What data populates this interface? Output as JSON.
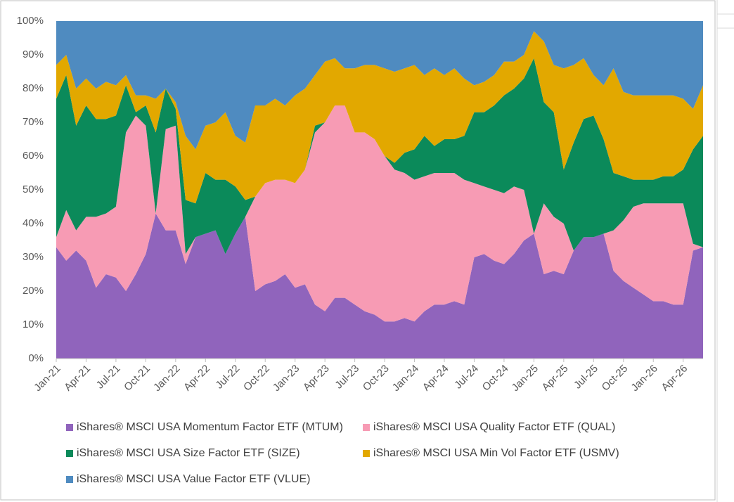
{
  "chart_data": {
    "type": "stacked_area",
    "categories": [
      "Jan-21",
      null,
      null,
      "Apr-21",
      null,
      null,
      "Jul-21",
      null,
      null,
      "Oct-21",
      null,
      null,
      "Jan-22",
      null,
      null,
      "Apr-22",
      null,
      null,
      "Jul-22",
      null,
      null,
      "Oct-22",
      null,
      null,
      "Jan-23",
      null,
      null,
      "Apr-23",
      null,
      null,
      "Jul-23",
      null,
      null,
      "Oct-23",
      null,
      null,
      "Jan-24",
      null,
      null,
      "Apr-24",
      null,
      null,
      "Jul-24",
      null,
      null,
      "Oct-24",
      null,
      null,
      "Jan-25",
      null,
      null,
      "Apr-25",
      null,
      null,
      "Jul-25",
      null,
      null,
      "Oct-25",
      null,
      null,
      "Jan-26",
      null,
      null,
      "Apr-26",
      null,
      null
    ],
    "series": [
      {
        "name": "iShares® MSCI USA Momentum Factor ETF (MTUM)",
        "color": "#9064bc",
        "values": [
          33,
          29,
          32,
          29,
          21,
          25,
          24,
          20,
          25,
          31,
          43,
          38,
          38,
          28,
          36,
          37,
          38,
          31,
          37,
          42,
          20,
          22,
          23,
          25,
          21,
          22,
          16,
          14,
          18,
          18,
          16,
          14,
          13,
          11,
          11,
          12,
          11,
          14,
          16,
          16,
          17,
          16,
          30,
          31,
          29,
          28,
          31,
          35,
          37,
          25,
          26,
          25,
          32,
          36,
          36,
          37,
          26,
          23,
          21,
          19,
          17,
          17,
          16,
          16,
          32,
          33
        ]
      },
      {
        "name": "iShares® MSCI USA Quality Factor ETF (QUAL)",
        "color": "#f79bb4",
        "values": [
          3,
          15,
          6,
          13,
          21,
          18,
          21,
          47,
          47,
          38,
          0,
          30,
          31,
          3,
          0,
          0,
          0,
          0,
          0,
          0,
          28,
          30,
          30,
          28,
          31,
          34,
          51,
          56,
          57,
          57,
          51,
          53,
          52,
          49,
          45,
          43,
          42,
          40,
          39,
          39,
          38,
          37,
          22,
          20,
          21,
          21,
          20,
          15,
          0,
          21,
          16,
          15,
          0,
          0,
          0,
          0,
          12,
          18,
          24,
          27,
          29,
          29,
          30,
          30,
          2,
          0
        ]
      },
      {
        "name": "iShares® MSCI USA Size Factor ETF (SIZE)",
        "color": "#0b8a5a",
        "values": [
          41,
          40,
          31,
          33,
          29,
          28,
          27,
          14,
          1,
          6,
          24,
          12,
          5,
          16,
          10,
          18,
          15,
          22,
          14,
          5,
          0,
          0,
          0,
          0,
          0,
          0,
          2,
          0,
          0,
          0,
          0,
          0,
          0,
          0,
          2,
          6,
          9,
          12,
          8,
          10,
          10,
          13,
          21,
          22,
          25,
          29,
          29,
          33,
          52,
          30,
          31,
          16,
          32,
          35,
          36,
          28,
          17,
          13,
          8,
          7,
          7,
          8,
          8,
          10,
          28,
          33
        ]
      },
      {
        "name": "iShares® MSCI USA Min Vol Factor ETF (USMV)",
        "color": "#e2a800",
        "values": [
          10,
          6,
          11,
          8,
          9,
          11,
          9,
          3,
          5,
          3,
          10,
          0,
          2,
          19,
          16,
          14,
          17,
          20,
          15,
          17,
          27,
          23,
          24,
          22,
          26,
          24,
          15,
          18,
          14,
          11,
          19,
          20,
          22,
          26,
          27,
          25,
          25,
          18,
          23,
          19,
          21,
          17,
          8,
          9,
          9,
          10,
          8,
          7,
          8,
          18,
          14,
          30,
          23,
          18,
          12,
          16,
          31,
          25,
          25,
          25,
          25,
          24,
          24,
          21,
          12,
          15
        ]
      },
      {
        "name": "iShares® MSCI USA Value Factor ETF (VLUE)",
        "color": "#4f8bc0",
        "values": [
          13,
          10,
          20,
          17,
          20,
          18,
          19,
          16,
          22,
          22,
          23,
          20,
          24,
          34,
          38,
          31,
          30,
          27,
          34,
          36,
          25,
          25,
          23,
          25,
          22,
          20,
          16,
          12,
          11,
          14,
          14,
          13,
          13,
          14,
          15,
          14,
          13,
          16,
          14,
          16,
          14,
          17,
          19,
          18,
          16,
          12,
          12,
          10,
          3,
          6,
          13,
          14,
          13,
          11,
          16,
          19,
          14,
          21,
          22,
          22,
          22,
          22,
          22,
          23,
          26,
          19
        ]
      }
    ],
    "ylim": [
      0,
      100
    ],
    "yticks": [
      {
        "value": 0,
        "label": "0%"
      },
      {
        "value": 10,
        "label": "10%"
      },
      {
        "value": 20,
        "label": "20%"
      },
      {
        "value": 30,
        "label": "30%"
      },
      {
        "value": 40,
        "label": "40%"
      },
      {
        "value": 50,
        "label": "50%"
      },
      {
        "value": 60,
        "label": "60%"
      },
      {
        "value": 70,
        "label": "70%"
      },
      {
        "value": 80,
        "label": "80%"
      },
      {
        "value": 90,
        "label": "90%"
      },
      {
        "value": 100,
        "label": "100%"
      }
    ],
    "grid": false,
    "legend": "bottom"
  }
}
